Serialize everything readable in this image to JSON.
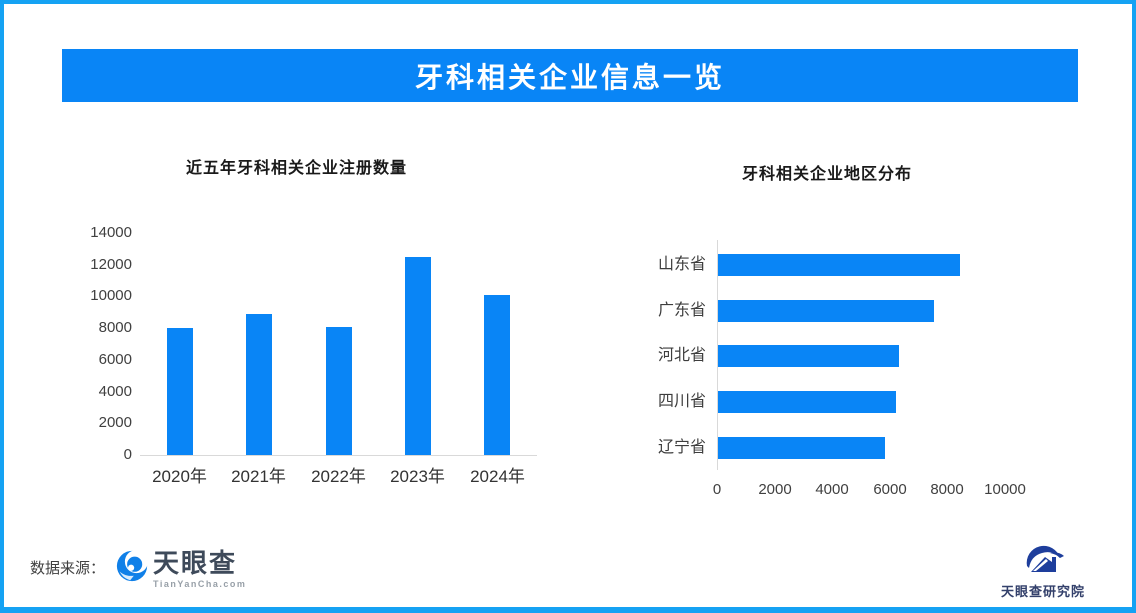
{
  "page": {
    "title": "牙科相关企业信息一览",
    "source_label": "数据来源：",
    "brand": {
      "name": "天眼查",
      "domain": "TianYanCha.com"
    },
    "footer_brand": "天眼查研究院"
  },
  "colors": {
    "frame_border": "#15A2F3",
    "banner_bg": "#0985F6",
    "bar_fill": "#0985F6",
    "axis_line": "#D9D9D9",
    "title_text": "#1A1A1A",
    "axis_text": "#404040",
    "brand_blue": "#1080E8",
    "brand_text": "#3E4A5A",
    "brand_sub_text": "#98A0A8",
    "institute_blue": "#1E3E9C",
    "institute_text": "#33406B"
  },
  "chart_data": [
    {
      "type": "bar",
      "orientation": "vertical",
      "title": "近五年牙科相关企业注册数量",
      "categories": [
        "2020年",
        "2021年",
        "2022年",
        "2023年",
        "2024年"
      ],
      "values": [
        8000,
        8900,
        8100,
        12500,
        10100
      ],
      "xlabel": "",
      "ylabel": "",
      "ylim": [
        0,
        14000
      ],
      "ytick_step": 2000,
      "grid": false,
      "legend": false
    },
    {
      "type": "bar",
      "orientation": "horizontal",
      "title": "牙科相关企业地区分布",
      "categories": [
        "山东省",
        "广东省",
        "河北省",
        "四川省",
        "辽宁省"
      ],
      "values": [
        8400,
        7500,
        6300,
        6200,
        5800
      ],
      "xlabel": "",
      "ylabel": "",
      "xlim": [
        0,
        10000
      ],
      "xtick_step": 2000,
      "grid": false,
      "legend": false
    }
  ]
}
